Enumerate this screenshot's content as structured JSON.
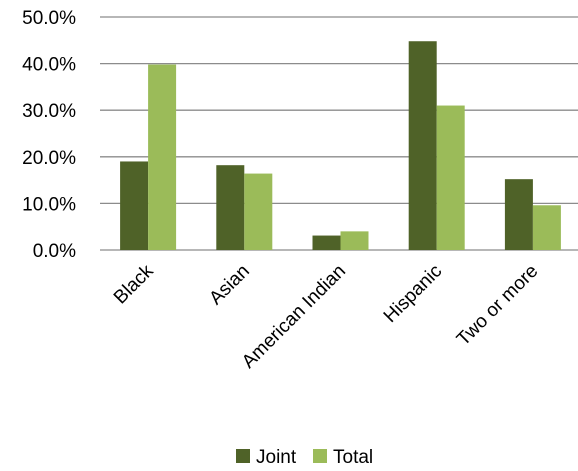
{
  "chart_data": {
    "type": "bar",
    "categories": [
      "Black",
      "Asian",
      "American Indian",
      "Hispanic",
      "Two or more"
    ],
    "series": [
      {
        "name": "Joint",
        "values": [
          19.0,
          18.2,
          3.1,
          44.8,
          15.2
        ],
        "color": "#4f6228"
      },
      {
        "name": "Total",
        "values": [
          39.8,
          16.4,
          4.0,
          31.0,
          9.6
        ],
        "color": "#9bbb59"
      }
    ],
    "yticks": [
      "0.0%",
      "10.0%",
      "20.0%",
      "30.0%",
      "40.0%",
      "50.0%"
    ],
    "ylim": [
      0,
      50
    ],
    "grid": true,
    "legend_position": "bottom",
    "title": "",
    "xlabel": "",
    "ylabel": ""
  }
}
